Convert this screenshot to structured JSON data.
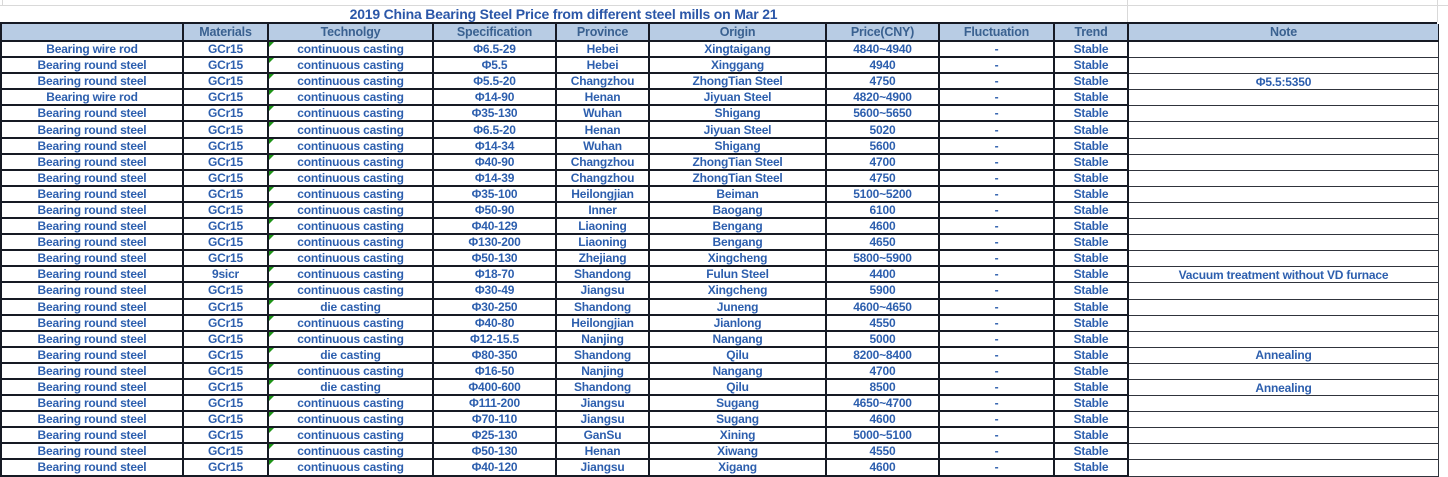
{
  "colors": {
    "header_bg": "#b8cce4",
    "body_text_blue": "#2d5fae",
    "header_text_blue": "#3a6190",
    "title_text_blue": "#2b57a8",
    "table_border": "#161a24",
    "note_column_border": "#30343c",
    "error_marker_green": "#1f9418",
    "faint_gridline": "#d9d9d9"
  },
  "icons": {
    "error_marker": "green-corner-triangle"
  },
  "chart_data": {
    "type": "table",
    "title": "2019 China Bearing Steel Price from different steel mills on Mar 21",
    "columns": [
      {
        "key": "product",
        "label": ""
      },
      {
        "key": "materials",
        "label": "Materials"
      },
      {
        "key": "technology",
        "label": "Technolgy"
      },
      {
        "key": "specification",
        "label": "Specification"
      },
      {
        "key": "province",
        "label": "Province"
      },
      {
        "key": "origin",
        "label": "Origin"
      },
      {
        "key": "price",
        "label": "Price(CNY)"
      },
      {
        "key": "fluctuation",
        "label": "Fluctuation"
      },
      {
        "key": "trend",
        "label": "Trend"
      },
      {
        "key": "note",
        "label": "Note"
      }
    ],
    "rows": [
      [
        "Bearing wire rod",
        "GCr15",
        "continuous casting",
        "Φ6.5-29",
        "Hebei",
        "Xingtaigang",
        "4840~4940",
        "-",
        "Stable",
        ""
      ],
      [
        "Bearing round steel",
        "GCr15",
        "continuous casting",
        "Φ5.5",
        "Hebei",
        "Xinggang",
        "4940",
        "-",
        "Stable",
        ""
      ],
      [
        "Bearing round steel",
        "GCr15",
        "continuous casting",
        "Φ5.5-20",
        "Changzhou",
        "ZhongTian Steel",
        "4750",
        "-",
        "Stable",
        "Φ5.5:5350"
      ],
      [
        "Bearing wire rod",
        "GCr15",
        "continuous casting",
        "Φ14-90",
        "Henan",
        "Jiyuan Steel",
        "4820~4900",
        "-",
        "Stable",
        ""
      ],
      [
        "Bearing round steel",
        "GCr15",
        "continuous casting",
        "Φ35-130",
        "Wuhan",
        "Shigang",
        "5600~5650",
        "-",
        "Stable",
        ""
      ],
      [
        "Bearing round steel",
        "GCr15",
        "continuous casting",
        "Φ6.5-20",
        "Henan",
        "Jiyuan Steel",
        "5020",
        "-",
        "Stable",
        ""
      ],
      [
        "Bearing round steel",
        "GCr15",
        "continuous casting",
        "Φ14-34",
        "Wuhan",
        "Shigang",
        "5600",
        "-",
        "Stable",
        ""
      ],
      [
        "Bearing round steel",
        "GCr15",
        "continuous casting",
        "Φ40-90",
        "Changzhou",
        "ZhongTian Steel",
        "4700",
        "-",
        "Stable",
        ""
      ],
      [
        "Bearing round steel",
        "GCr15",
        "continuous casting",
        "Φ14-39",
        "Changzhou",
        "ZhongTian Steel",
        "4750",
        "-",
        "Stable",
        ""
      ],
      [
        "Bearing round steel",
        "GCr15",
        "continuous casting",
        "Φ35-100",
        "Heilongjian",
        "Beiman",
        "5100~5200",
        "-",
        "Stable",
        ""
      ],
      [
        "Bearing round steel",
        "GCr15",
        "continuous casting",
        "Φ50-90",
        "Inner",
        "Baogang",
        "6100",
        "-",
        "Stable",
        ""
      ],
      [
        "Bearing round steel",
        "GCr15",
        "continuous casting",
        "Φ40-129",
        "Liaoning",
        "Bengang",
        "4600",
        "-",
        "Stable",
        ""
      ],
      [
        "Bearing round steel",
        "GCr15",
        "continuous casting",
        "Φ130-200",
        "Liaoning",
        "Bengang",
        "4650",
        "-",
        "Stable",
        ""
      ],
      [
        "Bearing round steel",
        "GCr15",
        "continuous casting",
        "Φ50-130",
        "Zhejiang",
        "Xingcheng",
        "5800~5900",
        "-",
        "Stable",
        ""
      ],
      [
        "Bearing round steel",
        "9sicr",
        "continuous casting",
        "Φ18-70",
        "Shandong",
        "Fulun Steel",
        "4400",
        "-",
        "Stable",
        "Vacuum treatment without VD furnace"
      ],
      [
        "Bearing round steel",
        "GCr15",
        "continuous casting",
        "Φ30-49",
        "Jiangsu",
        "Xingcheng",
        "5900",
        "-",
        "Stable",
        ""
      ],
      [
        "Bearing round steel",
        "GCr15",
        "die casting",
        "Φ30-250",
        "Shandong",
        "Juneng",
        "4600~4650",
        "-",
        "Stable",
        ""
      ],
      [
        "Bearing round steel",
        "GCr15",
        "continuous casting",
        "Φ40-80",
        "Heilongjian",
        "Jianlong",
        "4550",
        "-",
        "Stable",
        ""
      ],
      [
        "Bearing round steel",
        "GCr15",
        "continuous casting",
        "Φ12-15.5",
        "Nanjing",
        "Nangang",
        "5000",
        "-",
        "Stable",
        ""
      ],
      [
        "Bearing round steel",
        "GCr15",
        "die casting",
        "Φ80-350",
        "Shandong",
        "Qilu",
        "8200~8400",
        "-",
        "Stable",
        "Annealing"
      ],
      [
        "Bearing round steel",
        "GCr15",
        "continuous casting",
        "Φ16-50",
        "Nanjing",
        "Nangang",
        "4700",
        "-",
        "Stable",
        ""
      ],
      [
        "Bearing round steel",
        "GCr15",
        "die casting",
        "Φ400-600",
        "Shandong",
        "Qilu",
        "8500",
        "-",
        "Stable",
        "Annealing"
      ],
      [
        "Bearing round steel",
        "GCr15",
        "continuous casting",
        "Φ111-200",
        "Jiangsu",
        "Sugang",
        "4650~4700",
        "-",
        "Stable",
        ""
      ],
      [
        "Bearing round steel",
        "GCr15",
        "continuous casting",
        "Φ70-110",
        "Jiangsu",
        "Sugang",
        "4600",
        "-",
        "Stable",
        ""
      ],
      [
        "Bearing round steel",
        "GCr15",
        "continuous casting",
        "Φ25-130",
        "GanSu",
        "Xining",
        "5000~5100",
        "-",
        "Stable",
        ""
      ],
      [
        "Bearing round steel",
        "GCr15",
        "continuous casting",
        "Φ50-130",
        "Henan",
        "Xiwang",
        "4550",
        "-",
        "Stable",
        ""
      ],
      [
        "Bearing round steel",
        "GCr15",
        "continuous casting",
        "Φ40-120",
        "Jiangsu",
        "Xigang",
        "4600",
        "-",
        "Stable",
        ""
      ]
    ]
  }
}
